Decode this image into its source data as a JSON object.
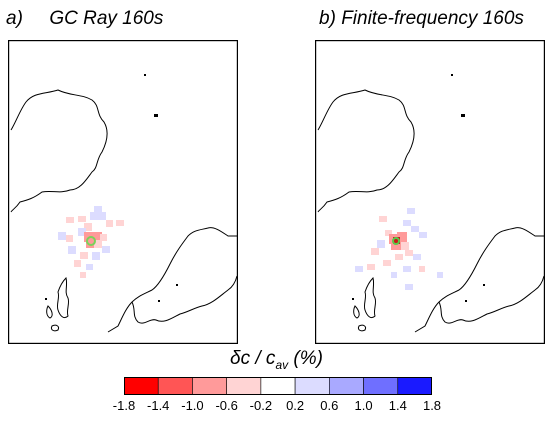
{
  "panels": [
    {
      "label": "a)",
      "title": "GC Ray 160s"
    },
    {
      "label": "b)",
      "title": "Finite-frequency 160s"
    }
  ],
  "colorbar": {
    "label_symbol": "δc / c",
    "label_subscript": "av",
    "label_unit": " (%)",
    "ticks": [
      "-1.8",
      "-1.4",
      "-1.0",
      "-0.6",
      "-0.2",
      "0.2",
      "0.6",
      "1.0",
      "1.4",
      "1.8"
    ],
    "colors": [
      "#ff0000",
      "#ff5555",
      "#ff9a9a",
      "#ffd4d4",
      "#ffffff",
      "#dcdcff",
      "#a9a9ff",
      "#6f6fff",
      "#1a1aff"
    ]
  }
}
